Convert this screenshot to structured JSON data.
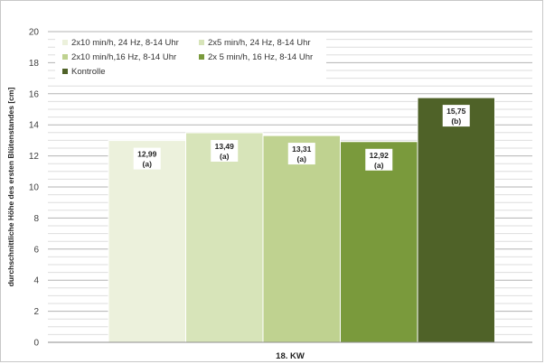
{
  "chart_data": {
    "type": "bar",
    "ylabel": "durchschnittliche Höhe des ersten Blütenstandes [cm]",
    "xlabel": "18. KW",
    "ylim": [
      0,
      20
    ],
    "y_ticks": [
      0,
      2,
      4,
      6,
      8,
      10,
      12,
      14,
      16,
      18,
      20
    ],
    "grid": true,
    "legend_position": "top-left",
    "categories": [
      "18. KW"
    ],
    "series": [
      {
        "name": "2x10 min/h, 24 Hz, 8-14 Uhr",
        "values": [
          12.99
        ],
        "label": "12,99",
        "group": "(a)",
        "color": "#ecf1dc"
      },
      {
        "name": "2x5 min/h, 24 Hz, 8-14 Uhr",
        "values": [
          13.49
        ],
        "label": "13,49",
        "group": "(a)",
        "color": "#d7e4b9"
      },
      {
        "name": "2x10 min/h,16 Hz, 8-14 Uhr",
        "values": [
          13.31
        ],
        "label": "13,31",
        "group": "(a)",
        "color": "#bfd290"
      },
      {
        "name": "2x 5 min/h, 16 Hz, 8-14 Uhr",
        "values": [
          12.92
        ],
        "label": "12,92",
        "group": "(a)",
        "color": "#7a9a3c"
      },
      {
        "name": "Kontrolle",
        "values": [
          15.75
        ],
        "label": "15,75",
        "group": "(b)",
        "color": "#4f6228"
      }
    ]
  }
}
